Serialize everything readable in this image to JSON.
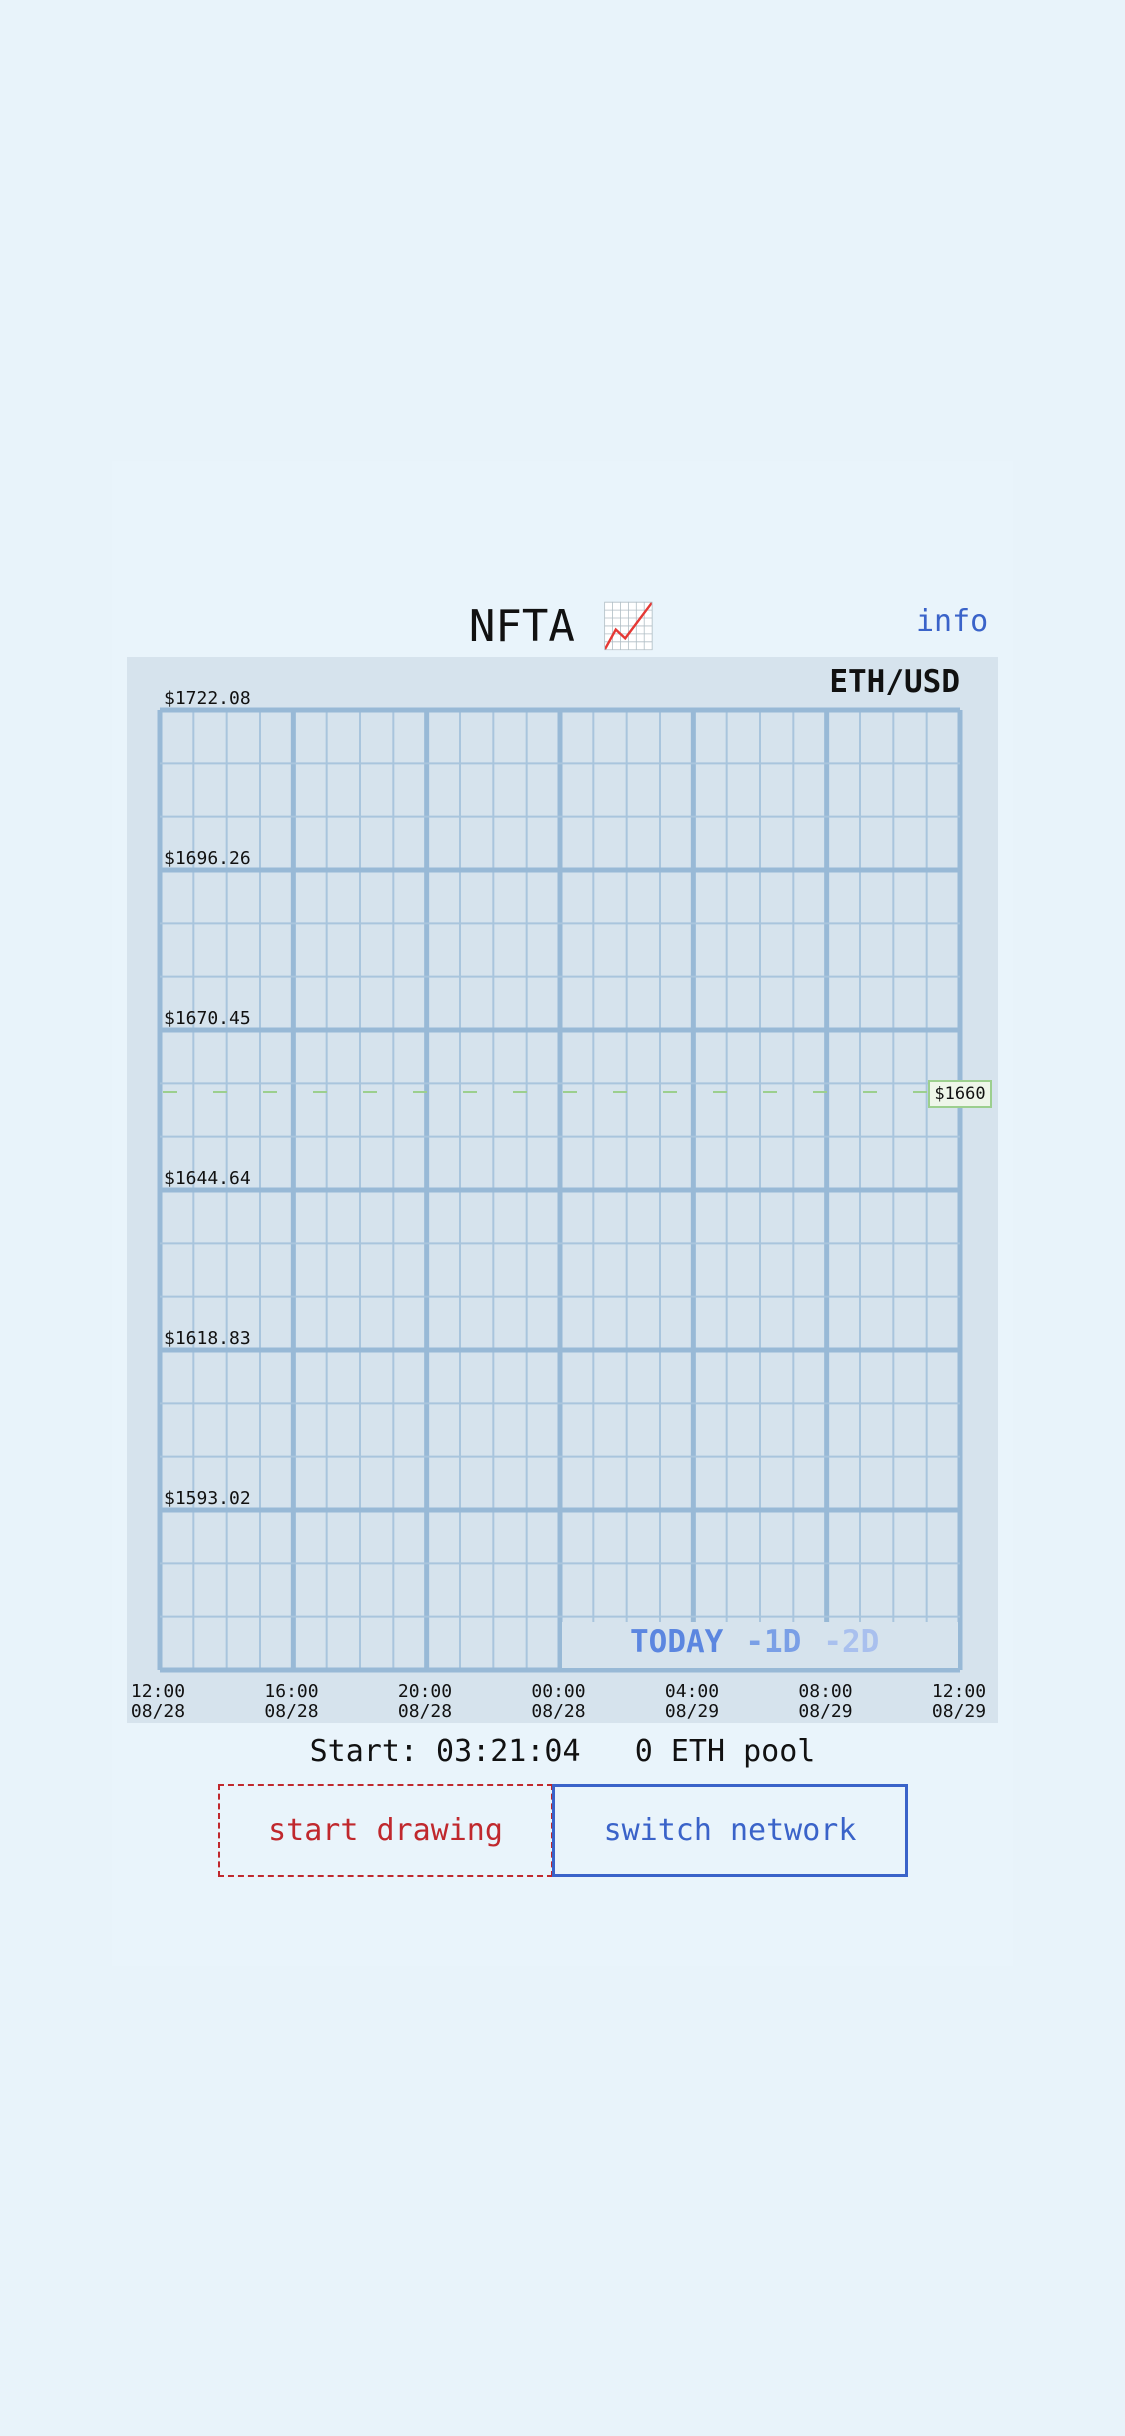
{
  "header": {
    "title": "NFTA 📈",
    "info": "info"
  },
  "chart": {
    "pair": "ETH/USD",
    "price_labels": [
      "$1722.08",
      "$1696.26",
      "$1670.45",
      "$1644.64",
      "$1618.83",
      "$1593.02"
    ],
    "reference_label": "$1660",
    "time_labels": [
      {
        "time": "12:00",
        "date": "08/28"
      },
      {
        "time": "16:00",
        "date": "08/28"
      },
      {
        "time": "20:00",
        "date": "08/28"
      },
      {
        "time": "00:00",
        "date": "08/28"
      },
      {
        "time": "04:00",
        "date": "08/29"
      },
      {
        "time": "08:00",
        "date": "08/29"
      },
      {
        "time": "12:00",
        "date": "08/29"
      }
    ],
    "ranges": [
      "TODAY",
      "-1D",
      "-2D"
    ]
  },
  "status": {
    "start": "Start: 03:21:04",
    "pool": "0 ETH pool"
  },
  "buttons": {
    "start_drawing": "start drawing",
    "switch_network": "switch network"
  }
}
